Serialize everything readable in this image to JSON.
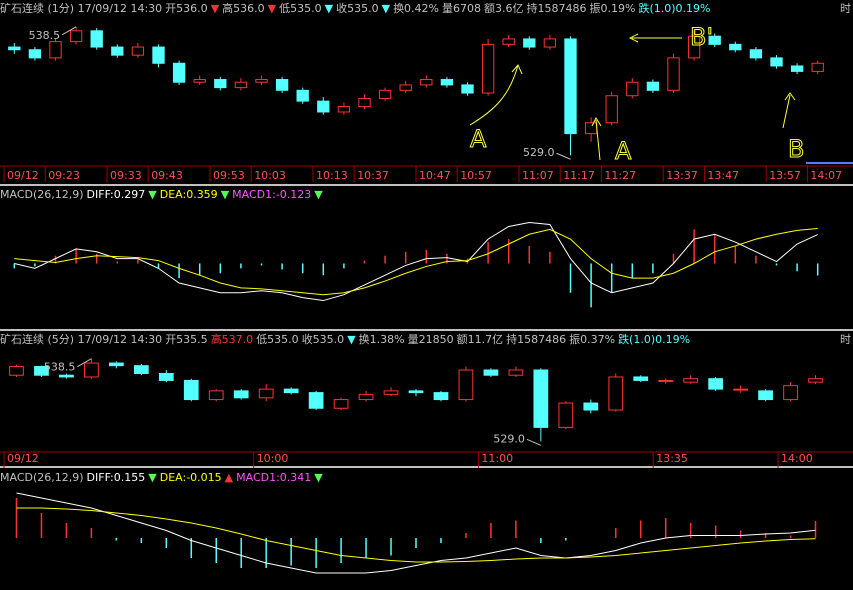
{
  "chart_data": [
    {
      "type": "candlestick",
      "header": [
        {
          "text": "矿石连续 (1分) 17/09/12 14:30",
          "color": "#c0c0c0"
        },
        {
          "text": "开536.0",
          "color": "#c0c0c0"
        },
        {
          "text": "▼",
          "color": "#ff3232"
        },
        {
          "text": "高536.0",
          "color": "#c0c0c0"
        },
        {
          "text": "▼",
          "color": "#ff3232"
        },
        {
          "text": "低535.0",
          "color": "#c0c0c0"
        },
        {
          "text": "▼",
          "color": "#54ffff"
        },
        {
          "text": "收535.0",
          "color": "#c0c0c0"
        },
        {
          "text": "▼",
          "color": "#54ffff"
        },
        {
          "text": "换0.42%",
          "color": "#c0c0c0"
        },
        {
          "text": "量6708",
          "color": "#c0c0c0"
        },
        {
          "text": "额3.6亿",
          "color": "#c0c0c0"
        },
        {
          "text": "持1587486",
          "color": "#c0c0c0"
        },
        {
          "text": "振0.19%",
          "color": "#c0c0c0"
        },
        {
          "text": "跌(1.0)0.19%",
          "color": "#54ffff"
        }
      ],
      "corner_label": "时",
      "categories": [
        "09/12",
        null,
        "09:23",
        null,
        null,
        "09:33",
        null,
        "09:43",
        null,
        null,
        "09:53",
        null,
        "10:03",
        null,
        null,
        "10:13",
        null,
        "10:37",
        null,
        null,
        "10:47",
        null,
        "10:57",
        null,
        null,
        "11:07",
        null,
        "11:17",
        null,
        "11:27",
        null,
        null,
        "13:37",
        null,
        "13:47",
        null,
        null,
        "13:57",
        null,
        "14:07"
      ],
      "open": [
        537.0,
        536.8,
        536.2,
        537.4,
        538.2,
        537.0,
        536.4,
        537.0,
        535.8,
        534.4,
        534.6,
        534.0,
        534.4,
        534.6,
        533.8,
        533.0,
        532.2,
        532.6,
        533.2,
        533.8,
        534.2,
        534.6,
        534.2,
        533.6,
        537.2,
        537.6,
        537.0,
        537.6,
        530.6,
        531.4,
        533.4,
        534.4,
        533.8,
        536.2,
        537.8,
        537.2,
        536.8,
        536.2,
        535.6,
        535.2
      ],
      "high": [
        537.3,
        537.0,
        537.6,
        538.5,
        538.4,
        537.2,
        537.3,
        537.2,
        536.0,
        534.9,
        534.8,
        534.7,
        534.9,
        534.8,
        534.0,
        533.3,
        532.9,
        533.5,
        534.0,
        534.5,
        534.9,
        534.8,
        534.4,
        537.6,
        537.9,
        537.8,
        537.9,
        537.8,
        531.8,
        533.7,
        534.7,
        534.6,
        536.5,
        538.2,
        538.0,
        537.4,
        537.0,
        536.4,
        535.8,
        536.0
      ],
      "low": [
        536.5,
        536.0,
        536.0,
        537.2,
        536.8,
        536.2,
        536.2,
        535.5,
        534.2,
        534.2,
        533.8,
        533.8,
        534.2,
        533.6,
        532.8,
        532.0,
        532.0,
        532.4,
        533.0,
        533.6,
        534.0,
        534.0,
        533.4,
        533.4,
        537.0,
        536.8,
        536.8,
        529.0,
        530.0,
        531.2,
        533.2,
        533.6,
        533.6,
        536.0,
        537.0,
        536.6,
        536.0,
        535.4,
        535.0,
        535.0
      ],
      "close": [
        536.8,
        536.2,
        537.4,
        538.2,
        537.0,
        536.4,
        537.0,
        535.8,
        534.4,
        534.6,
        534.0,
        534.4,
        534.6,
        533.8,
        533.0,
        532.2,
        532.6,
        533.2,
        533.8,
        534.2,
        534.6,
        534.2,
        533.6,
        537.2,
        537.6,
        537.0,
        537.6,
        530.6,
        531.4,
        533.4,
        534.4,
        533.8,
        536.2,
        537.8,
        537.2,
        536.8,
        536.2,
        535.6,
        535.2,
        535.8
      ],
      "high_label": {
        "value": 538.5,
        "label": "538.5"
      },
      "low_label": {
        "value": 529.0,
        "label": "529.0"
      },
      "handwritten": [
        "A",
        "A",
        "B",
        "B'"
      ],
      "up_color": "#ff3232",
      "down_color": "#54ffff",
      "ylim": [
        528.5,
        539
      ]
    },
    {
      "type": "macd",
      "header": [
        {
          "text": "MACD(26,12,9)",
          "color": "#c0c0c0"
        },
        {
          "text": "DIFF:0.297",
          "color": "#ffffff"
        },
        {
          "text": "▼",
          "color": "#54ff54"
        },
        {
          "text": "DEA:0.359",
          "color": "#ffff00"
        },
        {
          "text": "▼",
          "color": "#54ff54"
        },
        {
          "text": "MACD1:-0.123",
          "color": "#ff54ff"
        },
        {
          "text": "▼",
          "color": "#54ff54"
        }
      ],
      "histogram": [
        -0.05,
        -0.03,
        0.08,
        0.15,
        0.1,
        0.02,
        0.04,
        -0.05,
        -0.15,
        -0.12,
        -0.1,
        -0.05,
        -0.02,
        -0.06,
        -0.1,
        -0.12,
        -0.05,
        0.03,
        0.08,
        0.12,
        0.14,
        0.1,
        0.05,
        0.22,
        0.25,
        0.18,
        0.12,
        -0.3,
        -0.45,
        -0.3,
        -0.15,
        -0.1,
        0.1,
        0.35,
        0.3,
        0.18,
        0.08,
        -0.02,
        -0.08,
        -0.123
      ],
      "series": [
        {
          "color": "#ffffff",
          "values": [
            0.0,
            -0.05,
            0.05,
            0.15,
            0.12,
            0.05,
            0.05,
            -0.05,
            -0.2,
            -0.25,
            -0.3,
            -0.3,
            -0.28,
            -0.3,
            -0.35,
            -0.38,
            -0.32,
            -0.22,
            -0.12,
            -0.02,
            0.05,
            0.06,
            0.02,
            0.25,
            0.38,
            0.42,
            0.4,
            0.05,
            -0.2,
            -0.3,
            -0.25,
            -0.2,
            0.0,
            0.25,
            0.3,
            0.22,
            0.12,
            0.02,
            0.2,
            0.297
          ]
        },
        {
          "color": "#ffff00",
          "values": [
            0.05,
            0.03,
            0.01,
            0.05,
            0.08,
            0.07,
            0.06,
            0.03,
            -0.05,
            -0.12,
            -0.2,
            -0.25,
            -0.26,
            -0.28,
            -0.3,
            -0.32,
            -0.3,
            -0.25,
            -0.18,
            -0.1,
            -0.03,
            0.02,
            0.03,
            0.1,
            0.2,
            0.3,
            0.35,
            0.25,
            0.05,
            -0.1,
            -0.15,
            -0.15,
            -0.1,
            0.0,
            0.12,
            0.18,
            0.25,
            0.3,
            0.34,
            0.359
          ]
        }
      ],
      "up_color": "#ff3232",
      "down_color": "#54ffff",
      "ylim": [
        -0.6,
        0.6
      ]
    },
    {
      "type": "candlestick",
      "header": [
        {
          "text": "矿石连续 (5分) 17/09/12 14:30",
          "color": "#c0c0c0"
        },
        {
          "text": "开535.5",
          "color": "#c0c0c0"
        },
        {
          "text": "高537.0",
          "color": "#ff3232"
        },
        {
          "text": "低535.0",
          "color": "#c0c0c0"
        },
        {
          "text": "收535.0",
          "color": "#c0c0c0"
        },
        {
          "text": "▼",
          "color": "#54ffff"
        },
        {
          "text": "换1.38%",
          "color": "#c0c0c0"
        },
        {
          "text": "量21850",
          "color": "#c0c0c0"
        },
        {
          "text": "额11.7亿",
          "color": "#c0c0c0"
        },
        {
          "text": "持1587486",
          "color": "#c0c0c0"
        },
        {
          "text": "振0.37%",
          "color": "#c0c0c0"
        },
        {
          "text": "跌(1.0)0.19%",
          "color": "#54ffff"
        }
      ],
      "corner_label": "时",
      "categories": [
        "09/12",
        null,
        null,
        null,
        null,
        null,
        null,
        null,
        null,
        null,
        "10:00",
        null,
        null,
        null,
        null,
        null,
        null,
        null,
        null,
        "11:00",
        null,
        null,
        null,
        null,
        null,
        null,
        "13:35",
        null,
        null,
        null,
        null,
        "14:00",
        null
      ],
      "open": [
        536.6,
        537.6,
        536.6,
        536.4,
        538.0,
        537.7,
        536.8,
        536.0,
        533.8,
        534.8,
        534.0,
        535.0,
        534.6,
        532.8,
        533.8,
        534.4,
        534.8,
        534.6,
        533.8,
        537.2,
        536.6,
        537.2,
        530.6,
        533.4,
        532.6,
        536.4,
        536.0,
        535.8,
        536.2,
        535.0,
        534.8,
        533.8,
        535.8
      ],
      "high": [
        537.8,
        537.7,
        536.8,
        538.5,
        538.2,
        537.9,
        537.2,
        536.2,
        535.0,
        535.0,
        535.6,
        535.2,
        534.8,
        534.0,
        534.8,
        535.2,
        535.0,
        534.8,
        537.6,
        537.4,
        537.6,
        537.4,
        533.6,
        533.8,
        536.8,
        536.6,
        536.2,
        536.6,
        536.4,
        535.4,
        535.0,
        535.8,
        536.6
      ],
      "low": [
        536.4,
        536.4,
        536.2,
        536.2,
        537.4,
        536.6,
        535.8,
        533.6,
        533.6,
        533.8,
        533.6,
        534.4,
        532.6,
        532.6,
        533.6,
        534.2,
        534.2,
        533.6,
        533.6,
        536.4,
        536.4,
        529.0,
        530.4,
        532.2,
        532.4,
        535.8,
        535.6,
        535.6,
        534.8,
        534.6,
        533.6,
        533.6,
        535.6
      ],
      "close": [
        537.6,
        536.6,
        536.4,
        538.0,
        537.7,
        536.8,
        536.0,
        533.8,
        534.8,
        534.0,
        535.0,
        534.6,
        532.8,
        533.8,
        534.4,
        534.8,
        534.6,
        533.8,
        537.2,
        536.6,
        537.2,
        530.6,
        533.4,
        532.6,
        536.4,
        536.0,
        536.0,
        536.2,
        535.0,
        535.0,
        533.8,
        535.4,
        536.2
      ],
      "high_label": {
        "value": 538.5,
        "label": "538.5"
      },
      "low_label": {
        "value": 529.0,
        "label": "529.0"
      },
      "up_color": "#ff3232",
      "down_color": "#54ffff",
      "ylim": [
        528,
        539.5
      ]
    },
    {
      "type": "macd",
      "header": [
        {
          "text": "MACD(26,12,9)",
          "color": "#c0c0c0"
        },
        {
          "text": "DIFF:0.155",
          "color": "#ffffff"
        },
        {
          "text": "▼",
          "color": "#54ff54"
        },
        {
          "text": "DEA:-0.015",
          "color": "#ffff00"
        },
        {
          "text": "▲",
          "color": "#ff3232"
        },
        {
          "text": "MACD1:0.341",
          "color": "#ff54ff"
        },
        {
          "text": "▼",
          "color": "#54ff54"
        }
      ],
      "histogram": [
        0.8,
        0.5,
        0.3,
        0.2,
        -0.05,
        -0.1,
        -0.2,
        -0.4,
        -0.5,
        -0.6,
        -0.6,
        -0.55,
        -0.6,
        -0.5,
        -0.4,
        -0.35,
        -0.2,
        -0.1,
        0.1,
        0.3,
        0.35,
        -0.1,
        -0.05,
        0.0,
        0.2,
        0.35,
        0.4,
        0.3,
        0.25,
        0.15,
        0.1,
        0.05,
        0.341
      ],
      "series": [
        {
          "color": "#ffffff",
          "values": [
            0.9,
            0.8,
            0.7,
            0.6,
            0.45,
            0.3,
            0.15,
            -0.05,
            -0.2,
            -0.35,
            -0.5,
            -0.6,
            -0.7,
            -0.7,
            -0.7,
            -0.65,
            -0.55,
            -0.45,
            -0.4,
            -0.3,
            -0.2,
            -0.35,
            -0.4,
            -0.35,
            -0.25,
            -0.1,
            0.0,
            0.05,
            0.05,
            0.05,
            0.08,
            0.1,
            0.155
          ]
        },
        {
          "color": "#ffff00",
          "values": [
            0.6,
            0.6,
            0.58,
            0.55,
            0.5,
            0.45,
            0.38,
            0.3,
            0.2,
            0.08,
            -0.05,
            -0.15,
            -0.25,
            -0.35,
            -0.4,
            -0.45,
            -0.48,
            -0.48,
            -0.47,
            -0.45,
            -0.42,
            -0.4,
            -0.4,
            -0.38,
            -0.35,
            -0.3,
            -0.25,
            -0.2,
            -0.15,
            -0.1,
            -0.06,
            -0.03,
            -0.015
          ]
        }
      ],
      "up_color": "#ff3232",
      "down_color": "#54ffff",
      "ylim": [
        -1.0,
        1.0
      ]
    }
  ]
}
